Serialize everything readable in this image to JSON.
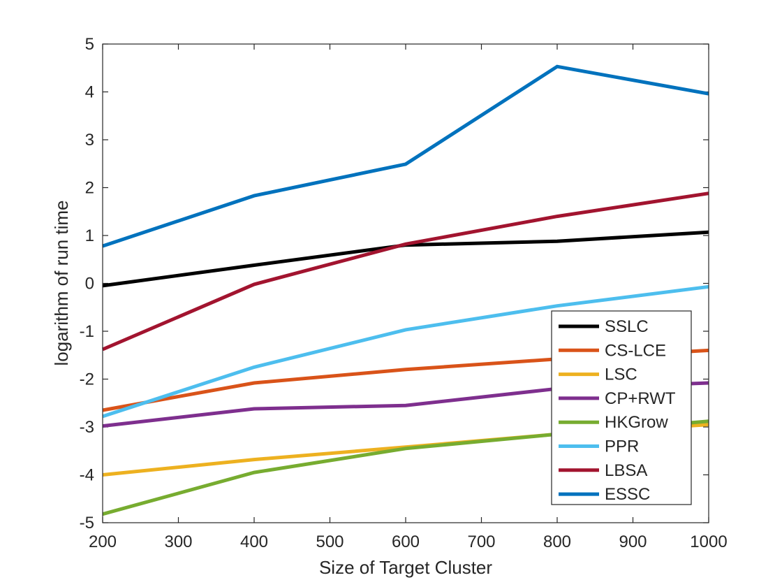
{
  "chart_data": {
    "type": "line",
    "title": "",
    "xlabel": "Size of Target Cluster",
    "ylabel": "logarithm of run time",
    "xlim": [
      200,
      1000
    ],
    "ylim": [
      -5,
      5
    ],
    "x": [
      200,
      400,
      600,
      800,
      1000
    ],
    "xticks": [
      "200",
      "300",
      "400",
      "500",
      "600",
      "700",
      "800",
      "900",
      "1000"
    ],
    "yticks": [
      "-5",
      "-4",
      "-3",
      "-2",
      "-1",
      "0",
      "1",
      "2",
      "3",
      "4",
      "5"
    ],
    "legend_position": "bottom-right",
    "series": [
      {
        "name": "SSLC",
        "color": "#000000",
        "values": [
          -0.05,
          0.38,
          0.8,
          0.88,
          1.07
        ]
      },
      {
        "name": "CS-LCE",
        "color": "#D95319",
        "values": [
          -2.65,
          -2.08,
          -1.8,
          -1.58,
          -1.4
        ]
      },
      {
        "name": "LSC",
        "color": "#EDB120",
        "values": [
          -4.0,
          -3.68,
          -3.42,
          -3.15,
          -2.95
        ]
      },
      {
        "name": "CP+RWT",
        "color": "#7E2F8E",
        "values": [
          -2.98,
          -2.62,
          -2.55,
          -2.2,
          -2.08
        ]
      },
      {
        "name": "HKGrow",
        "color": "#77AC30",
        "values": [
          -4.82,
          -3.95,
          -3.45,
          -3.15,
          -2.88
        ]
      },
      {
        "name": "PPR",
        "color": "#4DBEEE",
        "values": [
          -2.78,
          -1.75,
          -0.97,
          -0.47,
          -0.07
        ]
      },
      {
        "name": "LBSA",
        "color": "#A2142F",
        "values": [
          -1.38,
          -0.02,
          0.82,
          1.4,
          1.88
        ]
      },
      {
        "name": "ESSC",
        "color": "#0072BD",
        "values": [
          0.78,
          1.83,
          2.49,
          4.53,
          3.96
        ]
      }
    ]
  }
}
